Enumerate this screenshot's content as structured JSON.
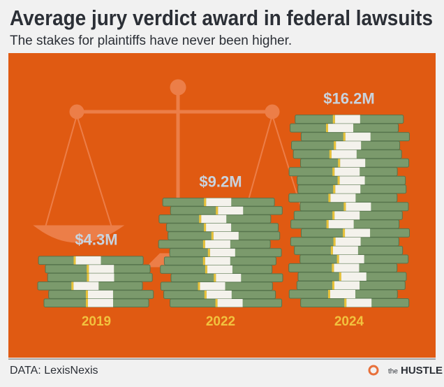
{
  "chart_data": {
    "type": "bar",
    "title": "Average jury verdict award in federal lawsuits",
    "subtitle": "The stakes for plaintiffs have never been higher.",
    "categories": [
      "2019",
      "2022",
      "2024"
    ],
    "values": [
      4.3,
      9.2,
      16.2
    ],
    "value_labels": [
      "$4.3M",
      "$9.2M",
      "$16.2M"
    ],
    "color": "#7b9a6c"
  },
  "source": "DATA: LexisNexis",
  "brand": {
    "prefix": "the",
    "name": "HUSTLE"
  }
}
